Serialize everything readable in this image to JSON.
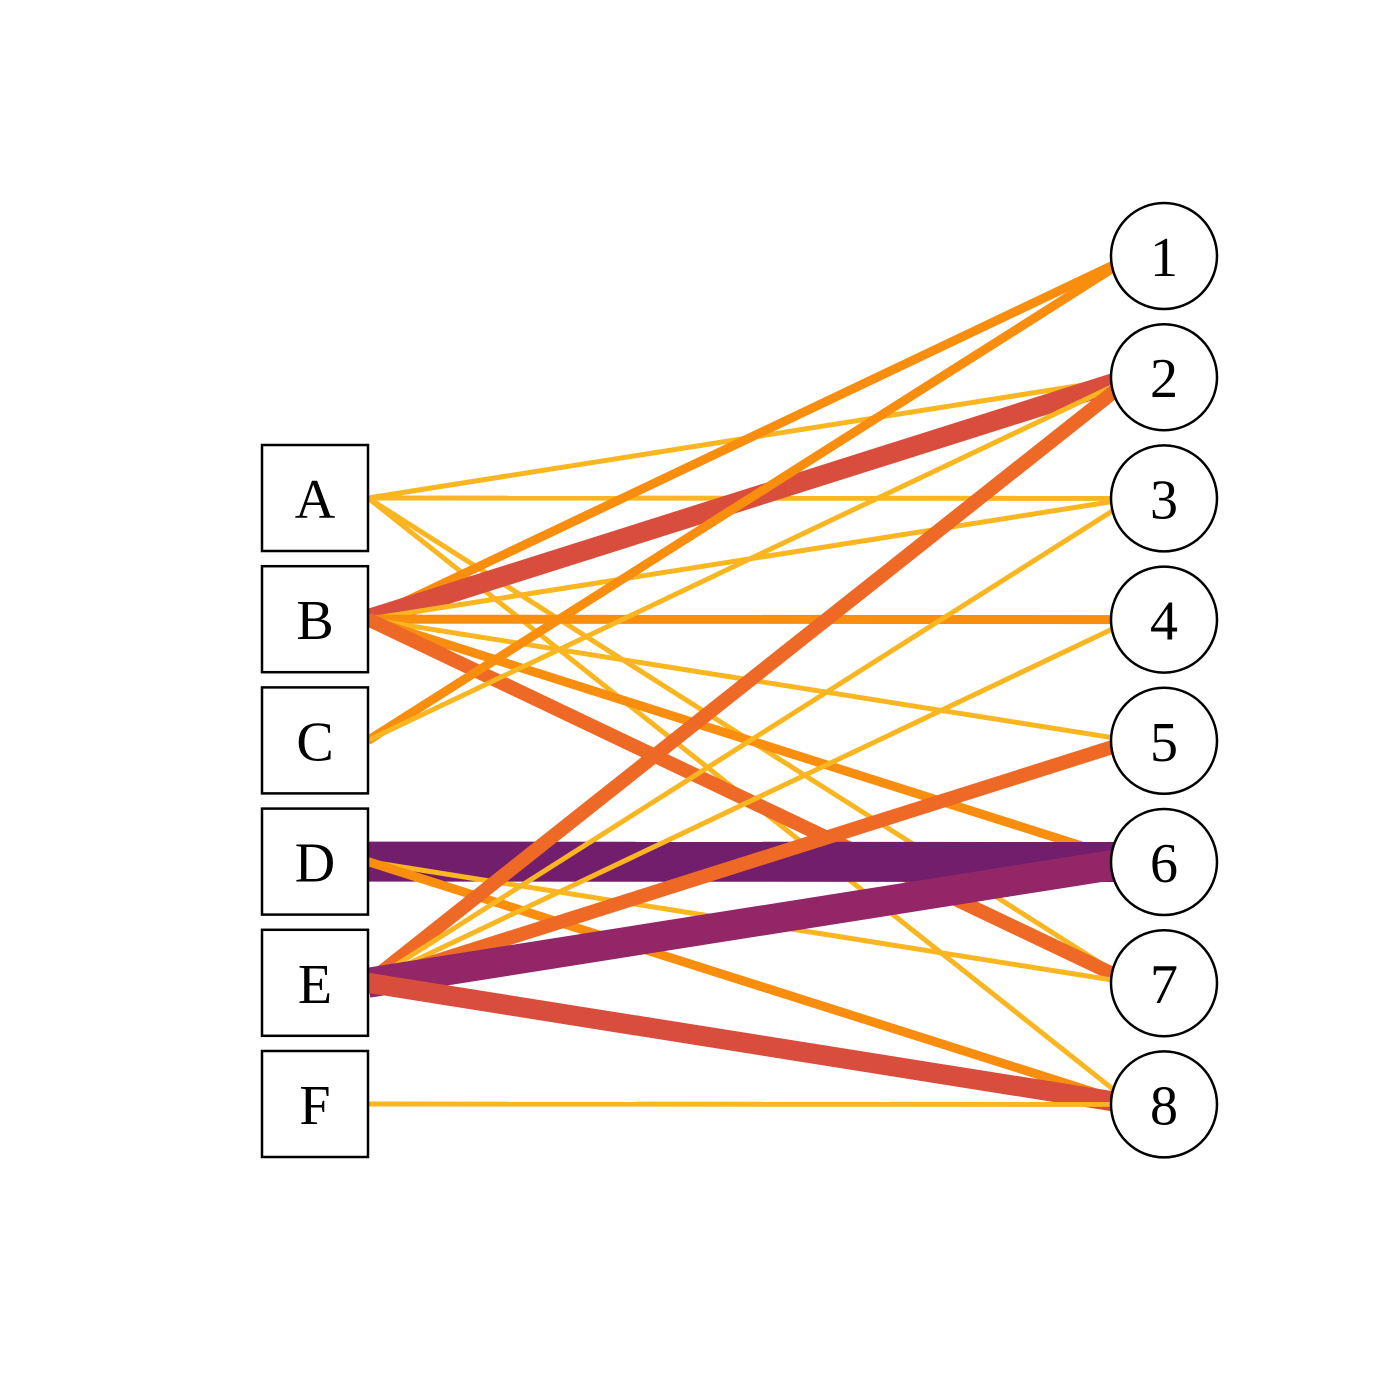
{
  "left_nodes": [
    {
      "id": "A",
      "label": "A"
    },
    {
      "id": "B",
      "label": "B"
    },
    {
      "id": "C",
      "label": "C"
    },
    {
      "id": "D",
      "label": "D"
    },
    {
      "id": "E",
      "label": "E"
    },
    {
      "id": "F",
      "label": "F"
    }
  ],
  "right_nodes": [
    {
      "id": "1",
      "label": "1"
    },
    {
      "id": "2",
      "label": "2"
    },
    {
      "id": "3",
      "label": "3"
    },
    {
      "id": "4",
      "label": "4"
    },
    {
      "id": "5",
      "label": "5"
    },
    {
      "id": "6",
      "label": "6"
    },
    {
      "id": "7",
      "label": "7"
    },
    {
      "id": "8",
      "label": "8"
    }
  ],
  "palette": {
    "w1": "#F9B621",
    "w2": "#F98D0E",
    "w3": "#ED6925",
    "w4": "#D94D3D",
    "w5": "#932667",
    "w6": "#721E6D"
  },
  "edges": [
    {
      "from": "A",
      "to": "2",
      "weight": 1
    },
    {
      "from": "A",
      "to": "3",
      "weight": 1
    },
    {
      "from": "A",
      "to": "7",
      "weight": 1
    },
    {
      "from": "A",
      "to": "8",
      "weight": 1
    },
    {
      "from": "B",
      "to": "1",
      "weight": 2
    },
    {
      "from": "B",
      "to": "2",
      "weight": 4
    },
    {
      "from": "B",
      "to": "3",
      "weight": 1
    },
    {
      "from": "B",
      "to": "4",
      "weight": 2
    },
    {
      "from": "B",
      "to": "5",
      "weight": 1
    },
    {
      "from": "B",
      "to": "6",
      "weight": 2
    },
    {
      "from": "B",
      "to": "7",
      "weight": 3
    },
    {
      "from": "C",
      "to": "1",
      "weight": 2
    },
    {
      "from": "C",
      "to": "2",
      "weight": 1
    },
    {
      "from": "D",
      "to": "6",
      "weight": 6
    },
    {
      "from": "D",
      "to": "7",
      "weight": 1
    },
    {
      "from": "D",
      "to": "8",
      "weight": 2
    },
    {
      "from": "E",
      "to": "2",
      "weight": 3
    },
    {
      "from": "E",
      "to": "3",
      "weight": 1
    },
    {
      "from": "E",
      "to": "4",
      "weight": 1
    },
    {
      "from": "E",
      "to": "5",
      "weight": 3
    },
    {
      "from": "E",
      "to": "6",
      "weight": 5
    },
    {
      "from": "E",
      "to": "8",
      "weight": 4
    },
    {
      "from": "F",
      "to": "8",
      "weight": 1
    }
  ]
}
